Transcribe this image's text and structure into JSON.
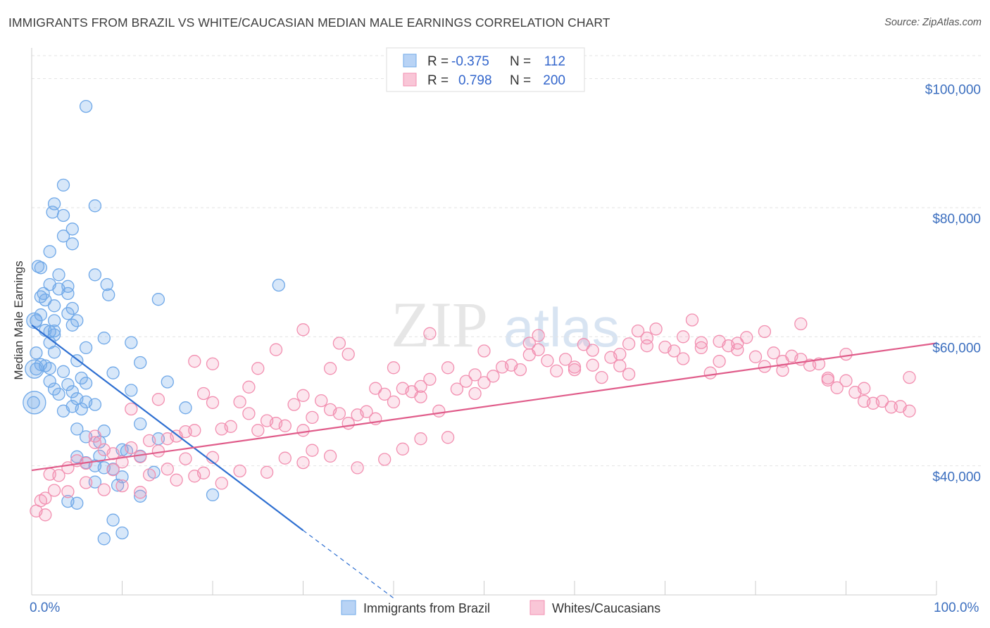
{
  "header": {
    "title": "IMMIGRANTS FROM BRAZIL VS WHITE/CAUCASIAN MEDIAN MALE EARNINGS CORRELATION CHART",
    "source": "Source: ZipAtlas.com"
  },
  "watermark": {
    "zip": "ZIP",
    "atlas": "atlas"
  },
  "chart_data": {
    "type": "scatter",
    "ylabel": "Median Male Earnings",
    "xlim": [
      0,
      100
    ],
    "ylim": [
      20000,
      104000
    ],
    "x_tick_labels": {
      "left": "0.0%",
      "right": "100.0%"
    },
    "y_ticks": [
      {
        "value": 40000,
        "label": "$40,000"
      },
      {
        "value": 60000,
        "label": "$60,000"
      },
      {
        "value": 80000,
        "label": "$80,000"
      },
      {
        "value": 100000,
        "label": "$100,000"
      }
    ],
    "grid": true,
    "legend": {
      "placement": "top-center",
      "rows": [
        {
          "r_label": "R =",
          "r_value": "-0.375",
          "n_label": "N =",
          "n_value": "112"
        },
        {
          "r_label": "R =",
          "r_value": "0.798",
          "n_label": "N =",
          "n_value": "200"
        }
      ]
    },
    "series": [
      {
        "name": "Immigrants from Brazil",
        "color": "#6fa8e8",
        "trend": {
          "x0": 0,
          "y0": 61800,
          "x1": 30,
          "y1": 30000,
          "dash_to_x": 40,
          "dash_to_y": 19500,
          "color": "#2e6fd1"
        },
        "points": [
          [
            6,
            95.7
          ],
          [
            3.5,
            83.5
          ],
          [
            2.5,
            80.6
          ],
          [
            7,
            80.3
          ],
          [
            2.3,
            79.3
          ],
          [
            3.5,
            78.8
          ],
          [
            4.5,
            76.7
          ],
          [
            3.5,
            75.6
          ],
          [
            4.5,
            74.4
          ],
          [
            2,
            73.2
          ],
          [
            0.7,
            70.9
          ],
          [
            1,
            70.7
          ],
          [
            3,
            69.6
          ],
          [
            7,
            69.6
          ],
          [
            2,
            68.1
          ],
          [
            8.3,
            68.1
          ],
          [
            27.3,
            68
          ],
          [
            4,
            67.8
          ],
          [
            3,
            67.4
          ],
          [
            1.3,
            66.7
          ],
          [
            4,
            66.7
          ],
          [
            8.5,
            66.5
          ],
          [
            1,
            66.2
          ],
          [
            1.5,
            65.7
          ],
          [
            14,
            65.8
          ],
          [
            2.5,
            64.8
          ],
          [
            4.5,
            64.4
          ],
          [
            4,
            63.6
          ],
          [
            1,
            63.4
          ],
          [
            0.5,
            62.5
          ],
          [
            2.5,
            62.5
          ],
          [
            5,
            62.5
          ],
          [
            4.5,
            61.8
          ],
          [
            1.5,
            61
          ],
          [
            2.5,
            60.9
          ],
          [
            2,
            60.8
          ],
          [
            2.5,
            60.3
          ],
          [
            8,
            59.8
          ],
          [
            11,
            59.1
          ],
          [
            2,
            59.1
          ],
          [
            6,
            58.3
          ],
          [
            2.5,
            57.6
          ],
          [
            0.5,
            57.5
          ],
          [
            5,
            56.3
          ],
          [
            12,
            56
          ],
          [
            1,
            55.7
          ],
          [
            1.5,
            55.5
          ],
          [
            2,
            55.1
          ],
          [
            0.5,
            55
          ],
          [
            3.5,
            54.6
          ],
          [
            9,
            54.4
          ],
          [
            5.5,
            53.6
          ],
          [
            2,
            53.1
          ],
          [
            15,
            53
          ],
          [
            6,
            52.8
          ],
          [
            4,
            52.6
          ],
          [
            2.5,
            51.9
          ],
          [
            11,
            51.7
          ],
          [
            4.5,
            51.5
          ],
          [
            3,
            51.1
          ],
          [
            5,
            50.4
          ],
          [
            6,
            49.9
          ],
          [
            0.2,
            49.8
          ],
          [
            7,
            49.5
          ],
          [
            4.5,
            49.2
          ],
          [
            17,
            49
          ],
          [
            5.5,
            48.8
          ],
          [
            3.5,
            48.5
          ],
          [
            12,
            46.5
          ],
          [
            5,
            45.7
          ],
          [
            8,
            45.4
          ],
          [
            6,
            44.5
          ],
          [
            14,
            44.2
          ],
          [
            7.5,
            43.7
          ],
          [
            10,
            42.5
          ],
          [
            10.5,
            42.3
          ],
          [
            7.5,
            41.5
          ],
          [
            12,
            41.5
          ],
          [
            5,
            41.4
          ],
          [
            6,
            40.5
          ],
          [
            7,
            40
          ],
          [
            8,
            39.7
          ],
          [
            9,
            39.5
          ],
          [
            13.5,
            39
          ],
          [
            10,
            38.3
          ],
          [
            7,
            37.5
          ],
          [
            9.5,
            37
          ],
          [
            20,
            35.5
          ],
          [
            12,
            35.3
          ],
          [
            4,
            34.5
          ],
          [
            5,
            34.2
          ],
          [
            9,
            31.6
          ],
          [
            10,
            29.6
          ],
          [
            8,
            28.7
          ]
        ]
      },
      {
        "name": "Whites/Caucasians",
        "color": "#f28fb0",
        "trend": {
          "x0": 0,
          "y0": 39300,
          "x1": 100,
          "y1": 59000,
          "color": "#e05c8a"
        },
        "points": [
          [
            97,
            53.7
          ],
          [
            95,
            49.1
          ],
          [
            93,
            49.7
          ],
          [
            92,
            52
          ],
          [
            91,
            51.4
          ],
          [
            90,
            53.2
          ],
          [
            89,
            52.1
          ],
          [
            88,
            53.6
          ],
          [
            87,
            55.8
          ],
          [
            86,
            55.6
          ],
          [
            85,
            56.5
          ],
          [
            84,
            57
          ],
          [
            83,
            56.2
          ],
          [
            82,
            57.5
          ],
          [
            81,
            55.4
          ],
          [
            80,
            56.9
          ],
          [
            79,
            59.9
          ],
          [
            78,
            59
          ],
          [
            77,
            58.6
          ],
          [
            76,
            56.2
          ],
          [
            75,
            54.4
          ],
          [
            74,
            58.3
          ],
          [
            73,
            62.6
          ],
          [
            72,
            60
          ],
          [
            71,
            57.8
          ],
          [
            70,
            58.4
          ],
          [
            69,
            61.2
          ],
          [
            68,
            59.8
          ],
          [
            67,
            60.9
          ],
          [
            66,
            58.9
          ],
          [
            65,
            55.5
          ],
          [
            64,
            56.8
          ],
          [
            63,
            53.7
          ],
          [
            62,
            57.9
          ],
          [
            61,
            58.8
          ],
          [
            60,
            55.3
          ],
          [
            59,
            56.5
          ],
          [
            58,
            54.7
          ],
          [
            57,
            56.3
          ],
          [
            56,
            58
          ],
          [
            55,
            57.2
          ],
          [
            54,
            54.9
          ],
          [
            53,
            55.6
          ],
          [
            52,
            55.3
          ],
          [
            51,
            53.9
          ],
          [
            50,
            52.9
          ],
          [
            49,
            51.2
          ],
          [
            48,
            53.1
          ],
          [
            47,
            51.9
          ],
          [
            46,
            55.2
          ],
          [
            45,
            48.5
          ],
          [
            44,
            53.4
          ],
          [
            43,
            50.7
          ],
          [
            42,
            51.5
          ],
          [
            41,
            52
          ],
          [
            40,
            49.9
          ],
          [
            39,
            51.1
          ],
          [
            38,
            47.3
          ],
          [
            37,
            48.4
          ],
          [
            36,
            47.9
          ],
          [
            35,
            46.6
          ],
          [
            34,
            48.1
          ],
          [
            33,
            48.7
          ],
          [
            32,
            50.1
          ],
          [
            31,
            47.5
          ],
          [
            30,
            45.5
          ],
          [
            29,
            49.5
          ],
          [
            28,
            46.2
          ],
          [
            27,
            46.6
          ],
          [
            26,
            47
          ],
          [
            25,
            45.5
          ],
          [
            24,
            48.1
          ],
          [
            23,
            49.9
          ],
          [
            22,
            46.1
          ],
          [
            21,
            45.7
          ],
          [
            20,
            49.8
          ],
          [
            19,
            51.2
          ],
          [
            18,
            45.5
          ],
          [
            17,
            45.3
          ],
          [
            16,
            44.6
          ],
          [
            15,
            44.2
          ],
          [
            14,
            42.3
          ],
          [
            13,
            43.9
          ],
          [
            12,
            41.4
          ],
          [
            11,
            42.8
          ],
          [
            10,
            40.6
          ],
          [
            9,
            41.9
          ],
          [
            8,
            42.5
          ],
          [
            7,
            43.6
          ],
          [
            6,
            40.4
          ],
          [
            5,
            40.8
          ],
          [
            4,
            39.7
          ],
          [
            3,
            38.5
          ],
          [
            2.5,
            36.2
          ],
          [
            2,
            38.7
          ],
          [
            1.5,
            35
          ],
          [
            1,
            34.6
          ],
          [
            0.5,
            33
          ],
          [
            1.5,
            32.4
          ],
          [
            20,
            55.8
          ],
          [
            25,
            55.1
          ],
          [
            35,
            57.3
          ],
          [
            40,
            55.2
          ],
          [
            55,
            59
          ],
          [
            62,
            55.6
          ],
          [
            68,
            58.6
          ],
          [
            74,
            59.1
          ],
          [
            78,
            58
          ],
          [
            83,
            54.8
          ],
          [
            27,
            58
          ],
          [
            30,
            50.9
          ],
          [
            33,
            55.1
          ],
          [
            38,
            52
          ],
          [
            43,
            52.3
          ],
          [
            50,
            57.8
          ],
          [
            60,
            54.9
          ],
          [
            65,
            57.3
          ],
          [
            72,
            56.6
          ],
          [
            88,
            53.3
          ],
          [
            92,
            50
          ],
          [
            96,
            49.2
          ],
          [
            15,
            39.5
          ],
          [
            17,
            41.1
          ],
          [
            18,
            38.4
          ],
          [
            20,
            41.3
          ],
          [
            23,
            39.2
          ],
          [
            26,
            39
          ],
          [
            28,
            41.2
          ],
          [
            30,
            40.5
          ],
          [
            31,
            42.4
          ],
          [
            33,
            41.5
          ],
          [
            36,
            39.7
          ],
          [
            39,
            41
          ],
          [
            41,
            42.6
          ],
          [
            43,
            44.2
          ],
          [
            46,
            44.4
          ],
          [
            10,
            36.9
          ],
          [
            12,
            35.9
          ],
          [
            13,
            38.6
          ],
          [
            16,
            37.8
          ],
          [
            19,
            38.9
          ],
          [
            21,
            37.3
          ],
          [
            6,
            37.4
          ],
          [
            8,
            36.3
          ],
          [
            9,
            39.4
          ],
          [
            4,
            36
          ],
          [
            7,
            44.6
          ],
          [
            11,
            48.8
          ],
          [
            14,
            50.3
          ],
          [
            18,
            56.2
          ],
          [
            24,
            52.2
          ],
          [
            30,
            61.1
          ],
          [
            34,
            59
          ],
          [
            44,
            60.5
          ],
          [
            49,
            54.1
          ],
          [
            56,
            60.2
          ],
          [
            66,
            54.2
          ],
          [
            76,
            59.3
          ],
          [
            81,
            60.8
          ],
          [
            85,
            62
          ],
          [
            90,
            57.3
          ],
          [
            94,
            50
          ],
          [
            97,
            48.5
          ]
        ]
      }
    ]
  },
  "bottom_legend": [
    {
      "label": "Immigrants from Brazil"
    },
    {
      "label": "Whites/Caucasians"
    }
  ]
}
